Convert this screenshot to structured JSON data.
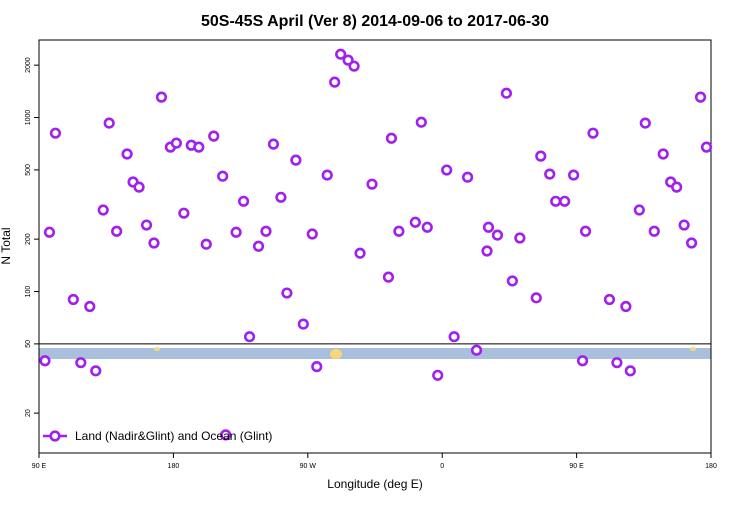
{
  "chart_data": {
    "type": "scatter",
    "title": "50S-45S April (Ver 8)   2014-09-06 to 2017-06-30",
    "x_label": "Longitude (deg E)",
    "y_label": "N Total",
    "y_scale": "log",
    "xlim": [
      90,
      540
    ],
    "ylim": [
      11.8,
      2790
    ],
    "xticks": [
      {
        "value": 90,
        "label": "90 E"
      },
      {
        "value": 180,
        "label": "180"
      },
      {
        "value": 270,
        "label": "90 W"
      },
      {
        "value": 360,
        "label": "0"
      },
      {
        "value": 450,
        "label": "90 E"
      },
      {
        "value": 540,
        "label": "180"
      }
    ],
    "yticks": [
      20,
      50,
      100,
      200,
      500,
      1000,
      2000
    ],
    "legend_position": "lower-left",
    "series": [
      {
        "name": "Land (Nadir&Glint) and Ocean (Glint)",
        "color": "#a020f0",
        "x": [
          94,
          97,
          101,
          113,
          118,
          124,
          128,
          133,
          137,
          142,
          149,
          153,
          157,
          162,
          167,
          172,
          178,
          182,
          187,
          192,
          197,
          202,
          207,
          213,
          215,
          222,
          227,
          231,
          237,
          242,
          247,
          252,
          256,
          262,
          267,
          273,
          276,
          283,
          288,
          292,
          297,
          301,
          305,
          313,
          324,
          326,
          331,
          342,
          346,
          350,
          357,
          363,
          368,
          377,
          383,
          390,
          391,
          397,
          403,
          407,
          412,
          423,
          426,
          432,
          436,
          442,
          448,
          454,
          456,
          461,
          472,
          477,
          483,
          486,
          492,
          496,
          502,
          508,
          513,
          517,
          522,
          527,
          533,
          537
        ],
        "values": [
          40,
          219,
          813,
          90,
          39,
          82,
          35,
          294,
          929,
          222,
          617,
          426,
          398,
          241,
          190,
          1310,
          676,
          713,
          282,
          693,
          676,
          187,
          782,
          460,
          15,
          219,
          330,
          55,
          182,
          222,
          703,
          348,
          98,
          569,
          65,
          214,
          37,
          467,
          1597,
          2312,
          2138,
          1973,
          166,
          414,
          121,
          760,
          222,
          250,
          940,
          234,
          33,
          499,
          55,
          454,
          46,
          171,
          234,
          211,
          1380,
          115,
          203,
          92,
          600,
          473,
          330,
          330,
          467,
          40,
          222,
          813,
          90,
          39,
          82,
          35,
          294,
          929,
          222,
          617,
          426,
          398,
          241,
          190,
          1310,
          676
        ]
      }
    ]
  }
}
